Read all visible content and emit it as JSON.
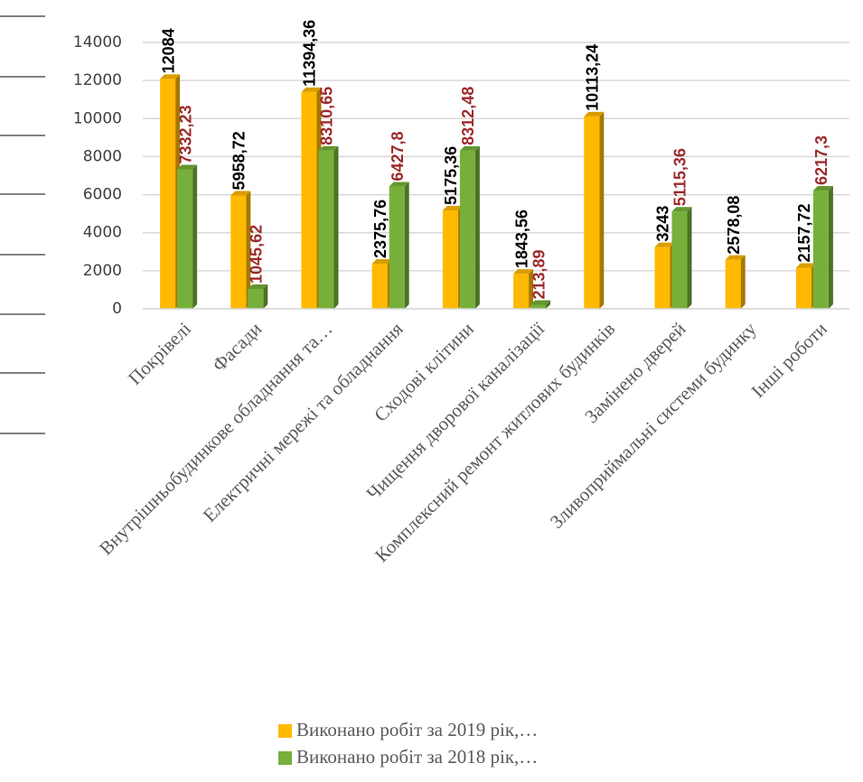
{
  "chart_data": {
    "type": "bar",
    "categories": [
      "Покрівелі",
      "Фасади",
      "Внутрішньобудинкове обладнання та…",
      "Електричні мережі та обладнання",
      "Сходові клітини",
      "Чищення дворової каналізації",
      "Комплексний ремонт житлових будинків",
      "Замінено дверей",
      "Зливоприймальні системи будинку",
      "Інші роботи"
    ],
    "series": [
      {
        "name": "Виконано робіт за 2019 рік,…",
        "color": "#ffb900",
        "label_color": "#000000",
        "values": [
          12084,
          5958.72,
          11394.36,
          2375.76,
          5175.36,
          1843.56,
          10113.24,
          3243,
          2578.08,
          2157.72
        ],
        "value_labels": [
          "12084",
          "5958,72",
          "11394,36",
          "2375,76",
          "5175,36",
          "1843,56",
          "10113,24",
          "3243",
          "2578,08",
          "2157,72"
        ]
      },
      {
        "name": "Виконано робіт за 2018 рік,…",
        "color": "#76b03a",
        "label_color": "#9e2a2b",
        "values": [
          7332.23,
          1045.62,
          8310.65,
          6427.8,
          8312.48,
          213.89,
          null,
          5115.36,
          null,
          6217.3
        ],
        "value_labels": [
          "7332,23",
          "1045,62",
          "8310,65",
          "6427,8",
          "8312,48",
          "213,89",
          null,
          "5115,36",
          null,
          "6217,3"
        ]
      }
    ],
    "ylim": [
      0,
      14000
    ],
    "yticks": [
      0,
      2000,
      4000,
      6000,
      8000,
      10000,
      12000,
      14000
    ],
    "grid": true
  }
}
